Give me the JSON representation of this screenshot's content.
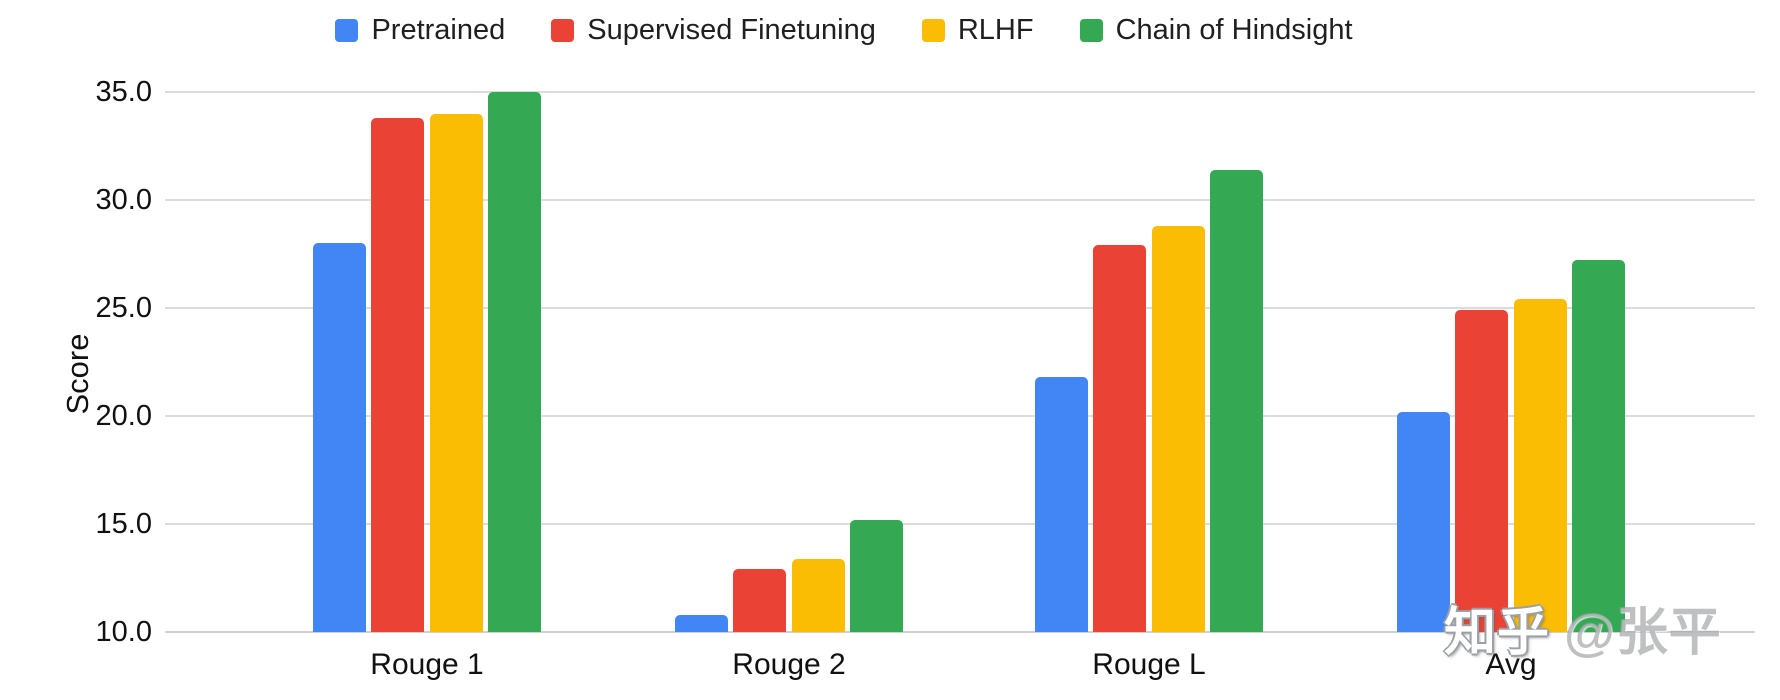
{
  "chart_data": {
    "type": "bar",
    "title": "",
    "ylabel": "Score",
    "xlabel": "",
    "categories": [
      "Rouge 1",
      "Rouge 2",
      "Rouge L",
      "Avg"
    ],
    "series": [
      {
        "name": "Pretrained",
        "color": "#4285F4",
        "values": [
          28.0,
          10.8,
          21.8,
          20.2
        ]
      },
      {
        "name": "Supervised Finetuning",
        "color": "#EA4335",
        "values": [
          33.8,
          12.9,
          27.9,
          24.9
        ]
      },
      {
        "name": "RLHF",
        "color": "#FBBC04",
        "values": [
          34.0,
          13.4,
          28.8,
          25.4
        ]
      },
      {
        "name": "Chain of Hindsight",
        "color": "#34A853",
        "values": [
          35.0,
          15.2,
          31.4,
          27.2
        ]
      }
    ],
    "ylim": [
      10,
      35
    ],
    "yticks": [
      {
        "label": "35.0",
        "value": 35
      },
      {
        "label": "30.0",
        "value": 30
      },
      {
        "label": "25.0",
        "value": 25
      },
      {
        "label": "20.0",
        "value": 20
      },
      {
        "label": "15.0",
        "value": 15
      },
      {
        "label": "10.0",
        "value": 10
      }
    ],
    "grid": "horizontal",
    "legend_position": "top"
  },
  "watermark": {
    "brand": "知乎",
    "user": "@张平",
    "brand_color": "#ffffff",
    "user_color": "#96999c"
  },
  "colors": {
    "background": "#ffffff",
    "gridline": "#dadce0",
    "axis_text": "#111111"
  }
}
